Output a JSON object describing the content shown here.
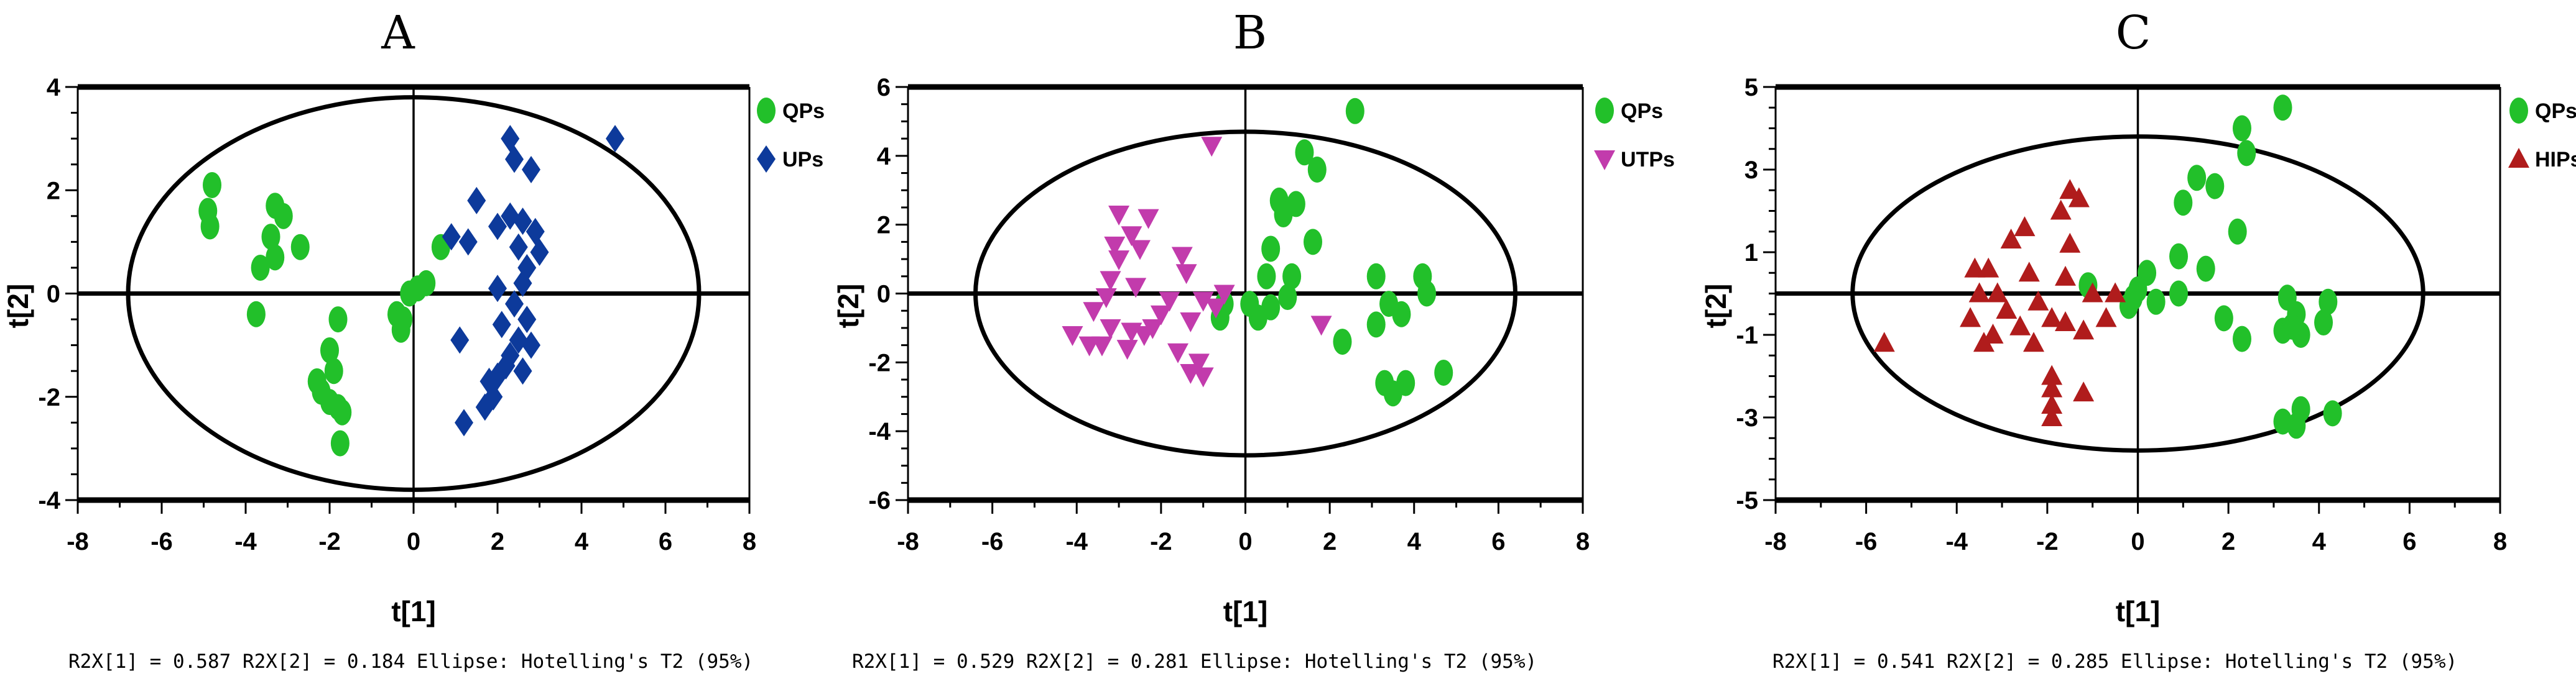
{
  "chart_data": [
    {
      "type": "scatter",
      "title": "A",
      "xlabel": "t[1]",
      "ylabel": "t[2]",
      "xlim": [
        -8,
        8
      ],
      "ylim": [
        -4,
        4
      ],
      "xticks": [
        -8,
        -6,
        -4,
        -2,
        0,
        2,
        4,
        6,
        8
      ],
      "yticks": [
        -4,
        -2,
        0,
        2,
        4
      ],
      "ellipse": {
        "rx": 6.8,
        "ry": 3.8
      },
      "footer": "R2X[1] = 0.587  R2X[2] = 0.184   Ellipse: Hotelling's T2 (95%)",
      "series": [
        {
          "name": "QPs",
          "marker": "circle",
          "color": "#22c02a",
          "points": [
            [
              -4.8,
              2.1
            ],
            [
              -4.9,
              1.6
            ],
            [
              -4.85,
              1.3
            ],
            [
              -3.3,
              1.7
            ],
            [
              -3.1,
              1.5
            ],
            [
              -3.4,
              1.1
            ],
            [
              -3.3,
              0.7
            ],
            [
              -2.7,
              0.9
            ],
            [
              -3.65,
              0.5
            ],
            [
              -3.75,
              -0.4
            ],
            [
              -2.0,
              -1.1
            ],
            [
              -1.8,
              -0.5
            ],
            [
              -1.9,
              -1.5
            ],
            [
              -2.3,
              -1.7
            ],
            [
              -2.2,
              -1.9
            ],
            [
              -2.0,
              -2.1
            ],
            [
              -1.8,
              -2.2
            ],
            [
              -1.7,
              -2.3
            ],
            [
              -1.75,
              -2.9
            ],
            [
              -0.4,
              -0.4
            ],
            [
              -0.3,
              -0.7
            ],
            [
              -0.25,
              -0.5
            ],
            [
              -0.1,
              0.0
            ],
            [
              0.1,
              0.1
            ],
            [
              0.3,
              0.2
            ],
            [
              0.65,
              0.9
            ]
          ]
        },
        {
          "name": "UPs",
          "marker": "diamond",
          "color": "#0d3a9b",
          "points": [
            [
              0.9,
              1.1
            ],
            [
              1.5,
              1.8
            ],
            [
              2.0,
              1.3
            ],
            [
              2.3,
              1.5
            ],
            [
              2.6,
              1.4
            ],
            [
              2.5,
              0.9
            ],
            [
              2.9,
              1.2
            ],
            [
              3.0,
              0.8
            ],
            [
              2.4,
              2.6
            ],
            [
              2.8,
              2.4
            ],
            [
              2.3,
              3.0
            ],
            [
              4.8,
              3.0
            ],
            [
              1.3,
              1.0
            ],
            [
              2.7,
              0.5
            ],
            [
              2.6,
              0.2
            ],
            [
              2.4,
              -0.2
            ],
            [
              2.1,
              -0.6
            ],
            [
              2.7,
              -0.5
            ],
            [
              2.5,
              -0.9
            ],
            [
              2.3,
              -1.2
            ],
            [
              2.2,
              -1.4
            ],
            [
              2.0,
              -1.6
            ],
            [
              1.8,
              -1.7
            ],
            [
              1.9,
              -2.0
            ],
            [
              1.7,
              -2.2
            ],
            [
              2.6,
              -1.5
            ],
            [
              2.8,
              -1.0
            ],
            [
              1.1,
              -0.9
            ],
            [
              1.2,
              -2.5
            ],
            [
              2.0,
              0.1
            ]
          ]
        }
      ]
    },
    {
      "type": "scatter",
      "title": "B",
      "xlabel": "t[1]",
      "ylabel": "t[2]",
      "xlim": [
        -8,
        8
      ],
      "ylim": [
        -6,
        6
      ],
      "xticks": [
        -8,
        -6,
        -4,
        -2,
        0,
        2,
        4,
        6,
        8
      ],
      "yticks": [
        -6,
        -4,
        -2,
        0,
        2,
        4,
        6
      ],
      "ellipse": {
        "rx": 6.4,
        "ry": 4.7
      },
      "footer": "R2X[1] = 0.529 R2X[2] = 0.281  Ellipse: Hotelling's T2 (95%)",
      "series": [
        {
          "name": "QPs",
          "marker": "circle",
          "color": "#22c02a",
          "points": [
            [
              2.6,
              5.3
            ],
            [
              1.4,
              4.1
            ],
            [
              1.7,
              3.6
            ],
            [
              0.8,
              2.7
            ],
            [
              1.2,
              2.6
            ],
            [
              0.9,
              2.3
            ],
            [
              0.6,
              1.3
            ],
            [
              1.6,
              1.5
            ],
            [
              0.5,
              0.5
            ],
            [
              1.1,
              0.5
            ],
            [
              3.1,
              0.5
            ],
            [
              4.2,
              0.5
            ],
            [
              4.3,
              0.0
            ],
            [
              3.4,
              -0.3
            ],
            [
              3.7,
              -0.6
            ],
            [
              3.1,
              -0.9
            ],
            [
              2.3,
              -1.4
            ],
            [
              0.6,
              -0.4
            ],
            [
              0.3,
              -0.7
            ],
            [
              -0.6,
              -0.7
            ],
            [
              -0.5,
              -0.3
            ],
            [
              3.3,
              -2.6
            ],
            [
              3.8,
              -2.6
            ],
            [
              3.5,
              -2.9
            ],
            [
              4.7,
              -2.3
            ],
            [
              0.1,
              -0.3
            ],
            [
              1.0,
              -0.1
            ]
          ]
        },
        {
          "name": "UTPs",
          "marker": "triangle-down",
          "color": "#c23bac",
          "points": [
            [
              -0.8,
              4.3
            ],
            [
              -3.0,
              2.3
            ],
            [
              -2.3,
              2.2
            ],
            [
              -2.7,
              1.7
            ],
            [
              -3.1,
              1.4
            ],
            [
              -2.5,
              1.3
            ],
            [
              -3.0,
              1.0
            ],
            [
              -1.5,
              1.1
            ],
            [
              -1.4,
              0.6
            ],
            [
              -3.2,
              0.4
            ],
            [
              -2.6,
              0.2
            ],
            [
              -3.6,
              -0.5
            ],
            [
              -3.3,
              -0.1
            ],
            [
              -2.0,
              -0.6
            ],
            [
              -1.0,
              -0.2
            ],
            [
              -0.5,
              0.0
            ],
            [
              -3.2,
              -1.0
            ],
            [
              -2.7,
              -1.1
            ],
            [
              -3.4,
              -1.5
            ],
            [
              -2.2,
              -1.0
            ],
            [
              -1.3,
              -0.8
            ],
            [
              -4.1,
              -1.2
            ],
            [
              -3.7,
              -1.5
            ],
            [
              -2.8,
              -1.6
            ],
            [
              -1.6,
              -1.7
            ],
            [
              -1.1,
              -2.0
            ],
            [
              -1.3,
              -2.3
            ],
            [
              -1.0,
              -2.4
            ],
            [
              -2.4,
              -1.2
            ],
            [
              1.8,
              -0.9
            ],
            [
              -0.7,
              -0.4
            ],
            [
              -1.8,
              -0.2
            ]
          ]
        }
      ]
    },
    {
      "type": "scatter",
      "title": "C",
      "xlabel": "t[1]",
      "ylabel": "t[2]",
      "xlim": [
        -8,
        8
      ],
      "ylim": [
        -5,
        5
      ],
      "xticks": [
        -8,
        -6,
        -4,
        -2,
        0,
        2,
        4,
        6,
        8
      ],
      "yticks": [
        -5,
        -3,
        -1,
        1,
        3,
        5
      ],
      "ellipse": {
        "rx": 6.3,
        "ry": 3.8
      },
      "footer": "R2X[1] = 0.541  R2X[2] = 0.285   Ellipse: Hotelling's T2 (95%)",
      "series": [
        {
          "name": "QPs",
          "marker": "circle",
          "color": "#22c02a",
          "points": [
            [
              3.2,
              4.5
            ],
            [
              2.3,
              4.0
            ],
            [
              2.4,
              3.4
            ],
            [
              1.3,
              2.8
            ],
            [
              1.7,
              2.6
            ],
            [
              1.0,
              2.2
            ],
            [
              2.2,
              1.5
            ],
            [
              0.9,
              0.9
            ],
            [
              1.5,
              0.6
            ],
            [
              3.3,
              -0.1
            ],
            [
              4.2,
              -0.2
            ],
            [
              4.1,
              -0.7
            ],
            [
              3.5,
              -0.5
            ],
            [
              3.2,
              -0.9
            ],
            [
              3.6,
              -1.0
            ],
            [
              3.4,
              -0.8
            ],
            [
              2.3,
              -1.1
            ],
            [
              1.9,
              -0.6
            ],
            [
              0.2,
              0.5
            ],
            [
              0.0,
              0.1
            ],
            [
              0.4,
              -0.2
            ],
            [
              -0.2,
              -0.3
            ],
            [
              -1.1,
              0.2
            ],
            [
              0.9,
              0.0
            ],
            [
              3.6,
              -2.8
            ],
            [
              3.5,
              -3.2
            ],
            [
              3.2,
              -3.1
            ],
            [
              4.3,
              -2.9
            ],
            [
              -0.1,
              -0.1
            ]
          ]
        },
        {
          "name": "HIPs",
          "marker": "triangle-up",
          "color": "#b01c1c",
          "points": [
            [
              -1.5,
              2.5
            ],
            [
              -1.3,
              2.3
            ],
            [
              -1.7,
              2.0
            ],
            [
              -2.5,
              1.6
            ],
            [
              -2.8,
              1.3
            ],
            [
              -1.5,
              1.2
            ],
            [
              -3.6,
              0.6
            ],
            [
              -3.3,
              0.6
            ],
            [
              -2.4,
              0.5
            ],
            [
              -1.6,
              0.4
            ],
            [
              -3.5,
              0.0
            ],
            [
              -3.1,
              0.0
            ],
            [
              -2.2,
              -0.2
            ],
            [
              -1.0,
              0.0
            ],
            [
              -0.5,
              0.0
            ],
            [
              -3.7,
              -0.6
            ],
            [
              -2.9,
              -0.4
            ],
            [
              -1.2,
              -0.9
            ],
            [
              -3.2,
              -1.0
            ],
            [
              -2.6,
              -0.8
            ],
            [
              -1.9,
              -0.6
            ],
            [
              -2.3,
              -1.2
            ],
            [
              -1.6,
              -0.7
            ],
            [
              -5.6,
              -1.2
            ],
            [
              -3.4,
              -1.2
            ],
            [
              -0.7,
              -0.6
            ],
            [
              -1.9,
              -2.0
            ],
            [
              -1.9,
              -2.3
            ],
            [
              -1.2,
              -2.4
            ],
            [
              -1.9,
              -2.7
            ],
            [
              -1.9,
              -3.0
            ]
          ]
        }
      ]
    }
  ]
}
